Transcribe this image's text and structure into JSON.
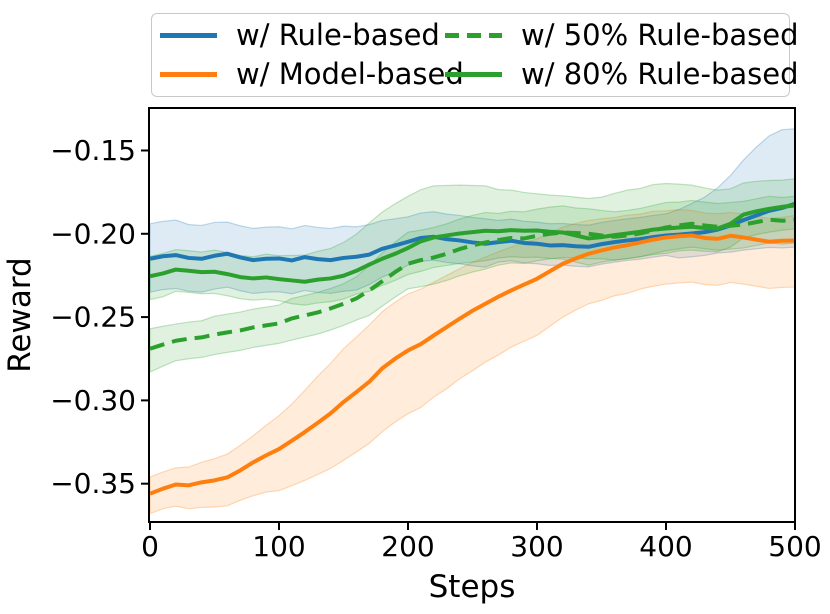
{
  "figure": {
    "background": "#ffffff"
  },
  "legend": {
    "items": [
      {
        "label": "w/ Rule-based",
        "color": "#1f77b4",
        "dash": false
      },
      {
        "label": "w/ 50% Rule-based",
        "color": "#2ca02c",
        "dash": true
      },
      {
        "label": "w/ Model-based",
        "color": "#ff7f0e",
        "dash": false
      },
      {
        "label": "w/ 80% Rule-based",
        "color": "#2ca02c",
        "dash": false
      }
    ]
  },
  "chart_data": {
    "type": "line",
    "title": "",
    "xlabel": "Steps",
    "ylabel": "Reward",
    "xlim": [
      0,
      500
    ],
    "ylim": [
      -0.373,
      -0.1245
    ],
    "xticks": [
      0,
      100,
      200,
      300,
      400,
      500
    ],
    "xtick_labels": [
      "0",
      "100",
      "200",
      "300",
      "400",
      "500"
    ],
    "yticks": [
      -0.15,
      -0.2,
      -0.25,
      -0.3,
      -0.35
    ],
    "ytick_labels": [
      "−0.15",
      "−0.20",
      "−0.25",
      "−0.30",
      "−0.35"
    ],
    "grid": false,
    "legend_position": "top",
    "band_opacity": 0.15,
    "x": [
      0,
      10,
      20,
      30,
      40,
      50,
      60,
      70,
      80,
      90,
      100,
      110,
      120,
      130,
      140,
      150,
      160,
      170,
      180,
      190,
      200,
      210,
      220,
      230,
      240,
      250,
      260,
      270,
      280,
      290,
      300,
      310,
      320,
      330,
      340,
      350,
      360,
      370,
      380,
      390,
      400,
      410,
      420,
      430,
      440,
      450,
      460,
      470,
      480,
      490,
      500
    ],
    "series": [
      {
        "name": "w/ Rule-based",
        "slug": "w-rule-based",
        "color": "#1f77b4",
        "style": "solid",
        "line_width": 4,
        "values": [
          -0.215,
          -0.2135,
          -0.2128,
          -0.2145,
          -0.215,
          -0.2132,
          -0.212,
          -0.2142,
          -0.2158,
          -0.215,
          -0.2148,
          -0.216,
          -0.214,
          -0.2152,
          -0.2158,
          -0.2145,
          -0.2138,
          -0.2125,
          -0.209,
          -0.207,
          -0.2048,
          -0.2025,
          -0.2018,
          -0.2032,
          -0.204,
          -0.2052,
          -0.206,
          -0.205,
          -0.2042,
          -0.2055,
          -0.206,
          -0.207,
          -0.2068,
          -0.2075,
          -0.2078,
          -0.2062,
          -0.205,
          -0.204,
          -0.2032,
          -0.202,
          -0.201,
          -0.2005,
          -0.1998,
          -0.199,
          -0.1975,
          -0.195,
          -0.1918,
          -0.189,
          -0.1862,
          -0.1845,
          -0.182
        ],
        "band_upper_halfwidth": [
          0.021,
          0.021,
          0.021,
          0.02,
          0.02,
          0.02,
          0.019,
          0.019,
          0.019,
          0.019,
          0.019,
          0.019,
          0.019,
          0.019,
          0.019,
          0.019,
          0.018,
          0.018,
          0.017,
          0.016,
          0.015,
          0.015,
          0.015,
          0.015,
          0.015,
          0.015,
          0.015,
          0.013,
          0.013,
          0.013,
          0.013,
          0.013,
          0.013,
          0.013,
          0.013,
          0.013,
          0.013,
          0.013,
          0.013,
          0.013,
          0.013,
          0.015,
          0.018,
          0.021,
          0.025,
          0.03,
          0.036,
          0.041,
          0.045,
          0.047,
          0.045
        ],
        "band_lower_halfwidth": [
          0.02,
          0.02,
          0.02,
          0.02,
          0.02,
          0.02,
          0.02,
          0.02,
          0.02,
          0.02,
          0.02,
          0.02,
          0.02,
          0.02,
          0.02,
          0.02,
          0.02,
          0.018,
          0.017,
          0.016,
          0.014,
          0.014,
          0.014,
          0.014,
          0.014,
          0.014,
          0.014,
          0.012,
          0.012,
          0.012,
          0.012,
          0.012,
          0.012,
          0.012,
          0.012,
          0.012,
          0.012,
          0.012,
          0.012,
          0.012,
          0.012,
          0.014,
          0.014,
          0.014,
          0.014,
          0.016,
          0.018,
          0.02,
          0.022,
          0.024,
          0.026
        ]
      },
      {
        "name": "w/ Model-based",
        "slug": "w-model-based",
        "color": "#ff7f0e",
        "style": "solid",
        "line_width": 4,
        "values": [
          -0.356,
          -0.353,
          -0.3505,
          -0.351,
          -0.3492,
          -0.348,
          -0.3462,
          -0.342,
          -0.3372,
          -0.333,
          -0.3292,
          -0.3242,
          -0.319,
          -0.3135,
          -0.3078,
          -0.301,
          -0.295,
          -0.2888,
          -0.2808,
          -0.275,
          -0.27,
          -0.2662,
          -0.261,
          -0.256,
          -0.251,
          -0.2462,
          -0.242,
          -0.2378,
          -0.234,
          -0.2305,
          -0.227,
          -0.2225,
          -0.218,
          -0.2148,
          -0.212,
          -0.21,
          -0.2082,
          -0.2068,
          -0.2052,
          -0.2035,
          -0.2022,
          -0.2015,
          -0.201,
          -0.2025,
          -0.203,
          -0.2012,
          -0.2022,
          -0.2035,
          -0.2048,
          -0.2042,
          -0.204
        ],
        "band_upper_halfwidth": [
          0.01,
          0.01,
          0.01,
          0.011,
          0.012,
          0.013,
          0.014,
          0.015,
          0.016,
          0.018,
          0.02,
          0.022,
          0.025,
          0.028,
          0.03,
          0.032,
          0.033,
          0.034,
          0.034,
          0.034,
          0.034,
          0.033,
          0.032,
          0.031,
          0.03,
          0.029,
          0.028,
          0.027,
          0.026,
          0.025,
          0.024,
          0.023,
          0.022,
          0.021,
          0.02,
          0.019,
          0.018,
          0.018,
          0.017,
          0.017,
          0.016,
          0.016,
          0.015,
          0.015,
          0.015,
          0.014,
          0.014,
          0.014,
          0.014,
          0.014,
          0.015
        ],
        "band_lower_halfwidth": [
          0.012,
          0.012,
          0.013,
          0.014,
          0.015,
          0.016,
          0.017,
          0.018,
          0.02,
          0.022,
          0.025,
          0.027,
          0.029,
          0.031,
          0.033,
          0.035,
          0.036,
          0.037,
          0.038,
          0.038,
          0.038,
          0.038,
          0.037,
          0.037,
          0.036,
          0.036,
          0.035,
          0.035,
          0.034,
          0.034,
          0.034,
          0.033,
          0.032,
          0.031,
          0.03,
          0.03,
          0.029,
          0.029,
          0.028,
          0.028,
          0.028,
          0.028,
          0.028,
          0.028,
          0.028,
          0.028,
          0.028,
          0.028,
          0.028,
          0.028,
          0.028
        ]
      },
      {
        "name": "w/ 50% Rule-based",
        "slug": "w-50-rule-based",
        "color": "#2ca02c",
        "style": "dashed",
        "line_width": 4,
        "values": [
          -0.269,
          -0.2665,
          -0.2642,
          -0.263,
          -0.2622,
          -0.2605,
          -0.2592,
          -0.258,
          -0.2562,
          -0.255,
          -0.2538,
          -0.2508,
          -0.249,
          -0.2472,
          -0.2448,
          -0.242,
          -0.2388,
          -0.234,
          -0.2285,
          -0.223,
          -0.218,
          -0.2158,
          -0.2142,
          -0.212,
          -0.2092,
          -0.207,
          -0.2052,
          -0.2038,
          -0.2025,
          -0.2028,
          -0.2012,
          -0.2,
          -0.1992,
          -0.1995,
          -0.2,
          -0.201,
          -0.2018,
          -0.201,
          -0.1998,
          -0.198,
          -0.1962,
          -0.195,
          -0.194,
          -0.195,
          -0.1958,
          -0.1952,
          -0.1945,
          -0.193,
          -0.1915,
          -0.1922,
          -0.1915
        ],
        "band_upper_halfwidth": [
          0.012,
          0.011,
          0.01,
          0.01,
          0.01,
          0.011,
          0.011,
          0.011,
          0.011,
          0.011,
          0.011,
          0.012,
          0.012,
          0.012,
          0.012,
          0.012,
          0.013,
          0.015,
          0.017,
          0.018,
          0.019,
          0.018,
          0.018,
          0.018,
          0.018,
          0.018,
          0.018,
          0.016,
          0.016,
          0.016,
          0.016,
          0.016,
          0.016,
          0.015,
          0.015,
          0.015,
          0.015,
          0.015,
          0.015,
          0.015,
          0.015,
          0.014,
          0.014,
          0.014,
          0.014,
          0.014,
          0.014,
          0.014,
          0.014,
          0.014,
          0.014
        ],
        "band_lower_halfwidth": [
          0.014,
          0.013,
          0.012,
          0.012,
          0.012,
          0.012,
          0.012,
          0.012,
          0.012,
          0.012,
          0.012,
          0.013,
          0.013,
          0.013,
          0.013,
          0.013,
          0.013,
          0.015,
          0.015,
          0.015,
          0.015,
          0.016,
          0.016,
          0.016,
          0.016,
          0.016,
          0.016,
          0.015,
          0.015,
          0.015,
          0.015,
          0.015,
          0.015,
          0.015,
          0.015,
          0.014,
          0.014,
          0.014,
          0.014,
          0.014,
          0.014,
          0.014,
          0.014,
          0.014,
          0.014,
          0.014,
          0.014,
          0.014,
          0.014,
          0.014,
          0.014
        ]
      },
      {
        "name": "w/ 80% Rule-based",
        "slug": "w-80-rule-based",
        "color": "#2ca02c",
        "style": "solid",
        "line_width": 4,
        "values": [
          -0.2255,
          -0.2238,
          -0.2215,
          -0.2222,
          -0.223,
          -0.2228,
          -0.2242,
          -0.226,
          -0.2268,
          -0.2262,
          -0.2272,
          -0.228,
          -0.2288,
          -0.2275,
          -0.2268,
          -0.2252,
          -0.2222,
          -0.2185,
          -0.215,
          -0.212,
          -0.2085,
          -0.2045,
          -0.2022,
          -0.201,
          -0.1998,
          -0.199,
          -0.1982,
          -0.1985,
          -0.1978,
          -0.1982,
          -0.198,
          -0.1988,
          -0.1992,
          -0.201,
          -0.2028,
          -0.202,
          -0.2008,
          -0.1998,
          -0.1988,
          -0.1975,
          -0.1968,
          -0.1962,
          -0.1958,
          -0.1965,
          -0.1968,
          -0.194,
          -0.1885,
          -0.1865,
          -0.185,
          -0.1838,
          -0.183
        ],
        "band_upper_halfwidth": [
          0.012,
          0.012,
          0.012,
          0.012,
          0.012,
          0.013,
          0.013,
          0.013,
          0.013,
          0.014,
          0.014,
          0.015,
          0.016,
          0.017,
          0.018,
          0.02,
          0.022,
          0.025,
          0.028,
          0.03,
          0.031,
          0.031,
          0.031,
          0.03,
          0.029,
          0.028,
          0.027,
          0.025,
          0.024,
          0.023,
          0.022,
          0.022,
          0.022,
          0.023,
          0.024,
          0.024,
          0.025,
          0.026,
          0.026,
          0.027,
          0.027,
          0.026,
          0.025,
          0.024,
          0.023,
          0.021,
          0.019,
          0.018,
          0.017,
          0.016,
          0.016
        ],
        "band_lower_halfwidth": [
          0.014,
          0.014,
          0.013,
          0.013,
          0.013,
          0.013,
          0.013,
          0.013,
          0.013,
          0.013,
          0.013,
          0.014,
          0.014,
          0.014,
          0.014,
          0.014,
          0.014,
          0.016,
          0.016,
          0.016,
          0.016,
          0.018,
          0.018,
          0.018,
          0.018,
          0.018,
          0.018,
          0.016,
          0.016,
          0.016,
          0.016,
          0.016,
          0.016,
          0.016,
          0.016,
          0.015,
          0.015,
          0.015,
          0.015,
          0.015,
          0.015,
          0.014,
          0.014,
          0.014,
          0.014,
          0.014,
          0.014,
          0.014,
          0.014,
          0.014,
          0.014
        ]
      }
    ]
  }
}
